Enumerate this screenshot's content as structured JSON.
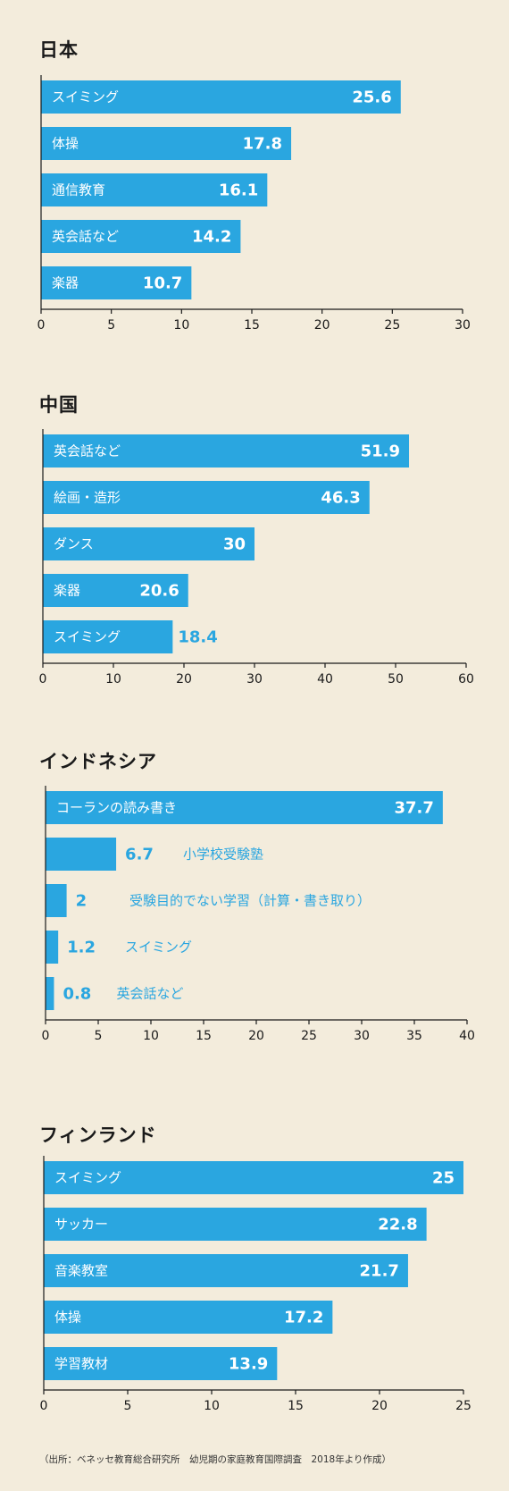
{
  "source_note": "（出所：ベネッセ教育総合研究所　幼児期の家庭教育国際調査　2018年より作成）",
  "chart_data": [
    {
      "type": "bar",
      "orientation": "horizontal",
      "title": "日本",
      "categories": [
        "スイミング",
        "体操",
        "通信教育",
        "英会話など",
        "楽器"
      ],
      "values": [
        25.6,
        17.8,
        16.1,
        14.2,
        10.7
      ],
      "value_labels": [
        "25.6",
        "17.8",
        "16.1",
        "14.2",
        "10.7"
      ],
      "xlim": [
        0,
        30
      ],
      "ticks": [
        0,
        5,
        10,
        15,
        20,
        25,
        30
      ],
      "xlabel": "",
      "ylabel": ""
    },
    {
      "type": "bar",
      "orientation": "horizontal",
      "title": "中国",
      "categories": [
        "英会話など",
        "絵画・造形",
        "ダンス",
        "楽器",
        "スイミング"
      ],
      "values": [
        51.9,
        46.3,
        30,
        20.6,
        18.4
      ],
      "value_labels": [
        "51.9",
        "46.3",
        "30",
        "20.6",
        "18.4"
      ],
      "xlim": [
        0,
        60
      ],
      "ticks": [
        0,
        10,
        20,
        30,
        40,
        50,
        60
      ],
      "xlabel": "",
      "ylabel": ""
    },
    {
      "type": "bar",
      "orientation": "horizontal",
      "title": "インドネシア",
      "categories": [
        "コーランの読み書き",
        "小学校受験塾",
        "受験目的でない学習（計算・書き取り）",
        "スイミング",
        "英会話など"
      ],
      "values": [
        37.7,
        6.7,
        2,
        1.2,
        0.8
      ],
      "value_labels": [
        "37.7",
        "6.7",
        "2",
        "1.2",
        "0.8"
      ],
      "xlim": [
        0,
        40
      ],
      "ticks": [
        0,
        5,
        10,
        15,
        20,
        25,
        30,
        35,
        40
      ],
      "xlabel": "",
      "ylabel": ""
    },
    {
      "type": "bar",
      "orientation": "horizontal",
      "title": "フィンランド",
      "categories": [
        "スイミング",
        "サッカー",
        "音楽教室",
        "体操",
        "学習教材"
      ],
      "values": [
        25,
        22.8,
        21.7,
        17.2,
        13.9
      ],
      "value_labels": [
        "25",
        "22.8",
        "21.7",
        "17.2",
        "13.9"
      ],
      "xlim": [
        0,
        25
      ],
      "ticks": [
        0,
        5,
        10,
        15,
        20,
        25
      ],
      "xlabel": "",
      "ylabel": ""
    }
  ],
  "colors": {
    "bar": "#2aa6e0",
    "background": "#f3ecdc",
    "text": "#1a1a1a"
  }
}
